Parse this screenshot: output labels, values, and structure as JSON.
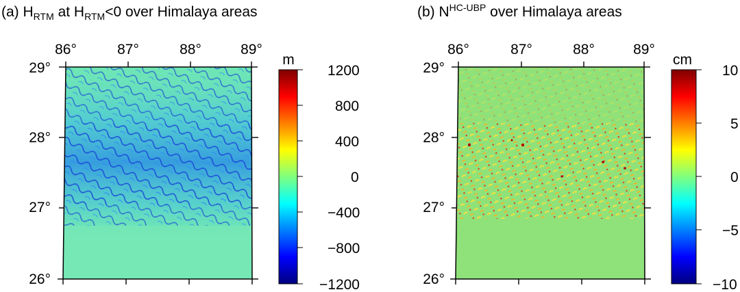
{
  "panels": [
    {
      "id": "a",
      "title_prefix": "(a) H",
      "title_sub1": "RTM",
      "title_mid": " at H",
      "title_sub2": "RTM",
      "title_suffix": "<0 over Himalaya areas",
      "lon_ticks": [
        "86°",
        "87°",
        "88°",
        "89°"
      ],
      "lat_ticks": [
        "29°",
        "28°",
        "27°",
        "26°"
      ],
      "colorbar": {
        "unit": "m",
        "labels": [
          "1200",
          "800",
          "400",
          "0",
          "−400",
          "−800",
          "−1200"
        ]
      }
    },
    {
      "id": "b",
      "title_prefix": "(b) N",
      "title_sup": "HC-UBP",
      "title_suffix": " over Himalaya areas",
      "lon_ticks": [
        "86°",
        "87°",
        "88°",
        "89°"
      ],
      "lat_ticks": [
        "29°",
        "28°",
        "27°",
        "26°"
      ],
      "colorbar": {
        "unit": "cm",
        "labels": [
          "10",
          "5",
          "0",
          "−5",
          "−10"
        ]
      }
    }
  ],
  "colors": {
    "field_background_a": "#6ee8b0",
    "field_background_b": "#8fe27a",
    "jet": [
      "#00007f",
      "#0000ff",
      "#007fff",
      "#00ffff",
      "#7fff7f",
      "#ffff00",
      "#ff7f00",
      "#ff0000",
      "#7f0000"
    ]
  }
}
